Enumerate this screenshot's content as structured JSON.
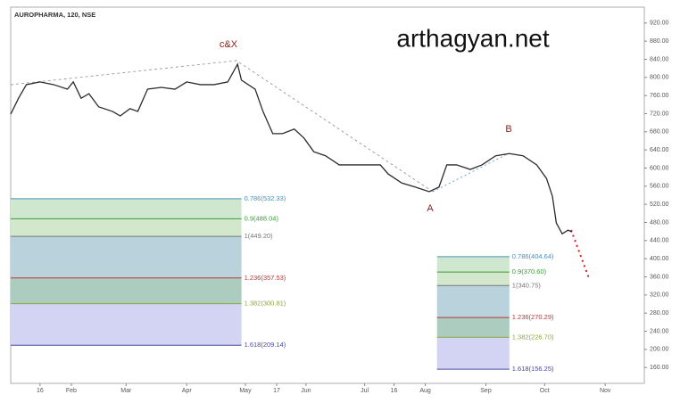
{
  "chart_data": {
    "type": "line",
    "title": "AUROPHARMA, 120, NSE",
    "watermark": "arthagyan.net",
    "annotations": [
      "c&X",
      "A",
      "B"
    ],
    "color": "#2b2b2b",
    "x": [
      1,
      5,
      9,
      16,
      23,
      30,
      33,
      37,
      41,
      46,
      53,
      57,
      62,
      66,
      71,
      78,
      85,
      91,
      98,
      105,
      112,
      117,
      119,
      126,
      130,
      135,
      140,
      146,
      151,
      156,
      162,
      169,
      176,
      183,
      190,
      194,
      201,
      208,
      215,
      220,
      224,
      229,
      236,
      242,
      249,
      256,
      263,
      270,
      275,
      278,
      280,
      283,
      286,
      288
    ],
    "values": [
      719,
      754,
      784,
      790,
      784,
      774,
      790,
      754,
      764,
      735,
      725,
      715,
      731,
      725,
      774,
      778,
      774,
      790,
      784,
      784,
      790,
      829,
      794,
      774,
      725,
      676,
      676,
      686,
      666,
      636,
      627,
      607,
      607,
      607,
      607,
      587,
      567,
      558,
      548,
      558,
      607,
      607,
      597,
      607,
      627,
      632,
      627,
      607,
      577,
      538,
      479,
      455,
      463,
      459
    ],
    "xlim": [
      1,
      325
    ],
    "xticks": [
      {
        "value": 16,
        "label": "16"
      },
      {
        "value": 32,
        "label": "Feb"
      },
      {
        "value": 60,
        "label": "Mar"
      },
      {
        "value": 91,
        "label": "Apr"
      },
      {
        "value": 121,
        "label": "May"
      },
      {
        "value": 137,
        "label": "17"
      },
      {
        "value": 152,
        "label": "Jun"
      },
      {
        "value": 182,
        "label": "Jul"
      },
      {
        "value": 197,
        "label": "16"
      },
      {
        "value": 213,
        "label": "Aug"
      },
      {
        "value": 244,
        "label": "Sep"
      },
      {
        "value": 274,
        "label": "Oct"
      },
      {
        "value": 305,
        "label": "Nov"
      }
    ],
    "ylim": [
      125,
      955
    ],
    "yticks": [
      {
        "value": 160,
        "label": "160.00"
      },
      {
        "value": 200,
        "label": "200.00"
      },
      {
        "value": 240,
        "label": "240.00"
      },
      {
        "value": 280,
        "label": "280.00"
      },
      {
        "value": 320,
        "label": "320.00"
      },
      {
        "value": 360,
        "label": "360.00"
      },
      {
        "value": 400,
        "label": "400.00"
      },
      {
        "value": 440,
        "label": "440.00"
      },
      {
        "value": 480,
        "label": "480.00"
      },
      {
        "value": 520,
        "label": "520.00"
      },
      {
        "value": 560,
        "label": "560.00"
      },
      {
        "value": 600,
        "label": "600.00"
      },
      {
        "value": 640,
        "label": "640.00"
      },
      {
        "value": 680,
        "label": "680.00"
      },
      {
        "value": 720,
        "label": "720.00"
      },
      {
        "value": 760,
        "label": "760.00"
      },
      {
        "value": 800,
        "label": "800.00"
      },
      {
        "value": 840,
        "label": "840.00"
      },
      {
        "value": 880,
        "label": "880.00"
      },
      {
        "value": 920,
        "label": "920.00"
      }
    ],
    "fibs": [
      {
        "x_range": [
          1,
          119
        ],
        "levels": [
          {
            "price": 532.33,
            "label": "0.786(532.33)",
            "color": "#4a90b8"
          },
          {
            "price": 488.04,
            "label": "0.9(488.04)",
            "color": "#3a9a3a"
          },
          {
            "price": 449.2,
            "label": "1(449.20)",
            "color": "#777777"
          },
          {
            "price": 357.53,
            "label": "1.236(357.53)",
            "color": "#b03a3a"
          },
          {
            "price": 300.81,
            "label": "1.382(300.81)",
            "color": "#8aa83a"
          },
          {
            "price": 209.14,
            "label": "1.618(209.14)",
            "color": "#4a4a9a"
          }
        ]
      },
      {
        "x_range": [
          219,
          256
        ],
        "levels": [
          {
            "price": 404.64,
            "label": "0.786(404.64)",
            "color": "#4a90b8"
          },
          {
            "price": 370.6,
            "label": "0.9(370.60)",
            "color": "#3a9a3a"
          },
          {
            "price": 340.75,
            "label": "1(340.75)",
            "color": "#777777"
          },
          {
            "price": 270.29,
            "label": "1.236(270.29)",
            "color": "#b03a3a"
          },
          {
            "price": 226.7,
            "label": "1.382(226.70)",
            "color": "#8aa83a"
          },
          {
            "price": 156.25,
            "label": "1.618(156.25)",
            "color": "#4a4a9a"
          }
        ]
      }
    ],
    "band_colors": [
      "#cfe6cf",
      "#d3e7cc",
      "#b9d2dc",
      "#acccbf",
      "#d3d3f3"
    ]
  }
}
